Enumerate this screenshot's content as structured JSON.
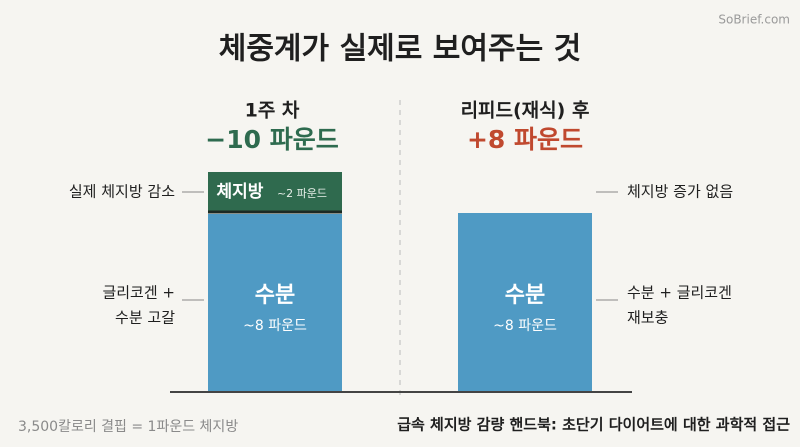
{
  "watermark": "SoBrief.com",
  "title": "체중계가 실제로 보여주는 것",
  "left": {
    "heading": "1주 차",
    "change": "−10 파운드",
    "top_segment": {
      "label": "체지방",
      "amount": "~2 파운드"
    },
    "bottom_segment": {
      "label": "수분",
      "amount": "~8 파운드"
    },
    "annotations": [
      "실제 체지방 감소",
      "글리코겐 +",
      "수분 고갈"
    ]
  },
  "right": {
    "heading": "리피드(재식) 후",
    "change": "+8 파운드",
    "bottom_segment": {
      "label": "수분",
      "amount": "~8 파운드"
    },
    "annotations": [
      "체지방 증가 없음",
      "수분 + 글리코겐",
      "재보충"
    ]
  },
  "footer": {
    "note": "3,500칼로리 결핍 = 1파운드 체지방",
    "source": "급속 체지방 감량 핸드북: 초단기 다이어트에 대한 과학적 접근"
  }
}
